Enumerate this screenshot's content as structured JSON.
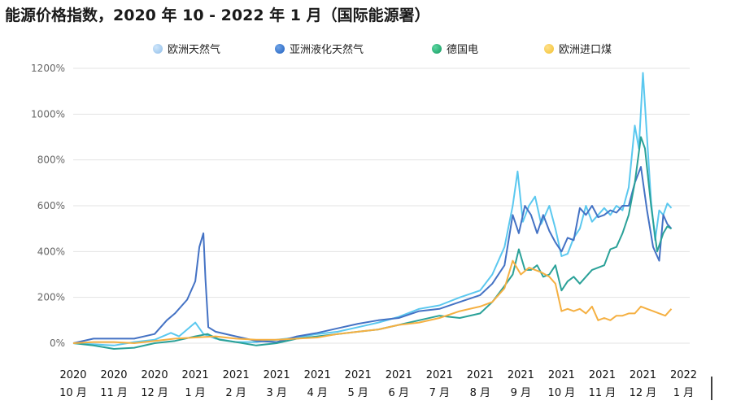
{
  "title": "能源价格指数，2020 年 10 - 2022 年 1 月（国际能源署）",
  "chart_data": {
    "type": "line",
    "title": "能源价格指数，2020 年 10 - 2022 年 1 月（国际能源署）",
    "xlabel": "",
    "ylabel": "",
    "ylim": [
      0,
      1200
    ],
    "yticks": [
      0,
      200,
      400,
      600,
      800,
      1000,
      1200
    ],
    "ytick_labels": [
      "0%",
      "200%",
      "400%",
      "600%",
      "800%",
      "1000%",
      "1200%"
    ],
    "grid": true,
    "legend_position": "top",
    "x_range": [
      0,
      15.15
    ],
    "x_tick_labels": [
      {
        "year": "2020",
        "month": "10 月"
      },
      {
        "year": "2020",
        "month": "11 月"
      },
      {
        "year": "2020",
        "month": "12 月"
      },
      {
        "year": "2021",
        "month": "1 月"
      },
      {
        "year": "2021",
        "month": "2 月"
      },
      {
        "year": "2021",
        "month": "3 月"
      },
      {
        "year": "2021",
        "month": "4 月"
      },
      {
        "year": "2021",
        "month": "5 月"
      },
      {
        "year": "2021",
        "month": "6 月"
      },
      {
        "year": "2021",
        "month": "7 月"
      },
      {
        "year": "2021",
        "month": "8 月"
      },
      {
        "year": "2021",
        "month": "9 月"
      },
      {
        "year": "2021",
        "month": "10 月"
      },
      {
        "year": "2021",
        "month": "11 月"
      },
      {
        "year": "2021",
        "month": "12 月"
      },
      {
        "year": "2022",
        "month": "1 月"
      }
    ],
    "series": [
      {
        "name": "欧洲天然气",
        "color": "#5bc8ef",
        "points": [
          [
            0,
            0
          ],
          [
            0.5,
            -5
          ],
          [
            1,
            -10
          ],
          [
            1.5,
            5
          ],
          [
            2,
            15
          ],
          [
            2.4,
            45
          ],
          [
            2.6,
            30
          ],
          [
            3,
            90
          ],
          [
            3.2,
            40
          ],
          [
            3.5,
            20
          ],
          [
            4,
            5
          ],
          [
            4.5,
            5
          ],
          [
            5,
            15
          ],
          [
            5.5,
            25
          ],
          [
            6,
            40
          ],
          [
            6.5,
            50
          ],
          [
            7,
            70
          ],
          [
            7.5,
            90
          ],
          [
            8,
            115
          ],
          [
            8.5,
            150
          ],
          [
            9,
            165
          ],
          [
            9.5,
            200
          ],
          [
            10,
            230
          ],
          [
            10.3,
            300
          ],
          [
            10.6,
            420
          ],
          [
            10.8,
            600
          ],
          [
            10.92,
            750
          ],
          [
            11.05,
            530
          ],
          [
            11.2,
            600
          ],
          [
            11.35,
            640
          ],
          [
            11.5,
            520
          ],
          [
            11.7,
            600
          ],
          [
            11.85,
            500
          ],
          [
            12,
            380
          ],
          [
            12.15,
            390
          ],
          [
            12.3,
            460
          ],
          [
            12.45,
            500
          ],
          [
            12.6,
            600
          ],
          [
            12.75,
            530
          ],
          [
            12.9,
            560
          ],
          [
            13.05,
            590
          ],
          [
            13.2,
            560
          ],
          [
            13.35,
            600
          ],
          [
            13.5,
            580
          ],
          [
            13.65,
            680
          ],
          [
            13.8,
            950
          ],
          [
            13.9,
            850
          ],
          [
            14.0,
            1180
          ],
          [
            14.1,
            900
          ],
          [
            14.2,
            620
          ],
          [
            14.3,
            450
          ],
          [
            14.4,
            580
          ],
          [
            14.5,
            560
          ],
          [
            14.6,
            610
          ],
          [
            14.7,
            590
          ]
        ]
      },
      {
        "name": "亚洲液化天然气",
        "color": "#4472c4",
        "points": [
          [
            0,
            0
          ],
          [
            0.5,
            20
          ],
          [
            1,
            20
          ],
          [
            1.5,
            20
          ],
          [
            2,
            40
          ],
          [
            2.3,
            100
          ],
          [
            2.5,
            130
          ],
          [
            2.8,
            190
          ],
          [
            3.0,
            270
          ],
          [
            3.1,
            420
          ],
          [
            3.2,
            480
          ],
          [
            3.25,
            280
          ],
          [
            3.32,
            70
          ],
          [
            3.5,
            50
          ],
          [
            4,
            30
          ],
          [
            4.5,
            10
          ],
          [
            5,
            5
          ],
          [
            5.5,
            30
          ],
          [
            6,
            45
          ],
          [
            6.5,
            65
          ],
          [
            7,
            85
          ],
          [
            7.5,
            100
          ],
          [
            8,
            110
          ],
          [
            8.5,
            140
          ],
          [
            9,
            150
          ],
          [
            9.5,
            180
          ],
          [
            10,
            210
          ],
          [
            10.3,
            260
          ],
          [
            10.6,
            340
          ],
          [
            10.8,
            560
          ],
          [
            10.95,
            480
          ],
          [
            11.1,
            600
          ],
          [
            11.25,
            560
          ],
          [
            11.4,
            480
          ],
          [
            11.55,
            560
          ],
          [
            11.7,
            490
          ],
          [
            11.85,
            440
          ],
          [
            12,
            400
          ],
          [
            12.15,
            460
          ],
          [
            12.3,
            450
          ],
          [
            12.45,
            590
          ],
          [
            12.6,
            560
          ],
          [
            12.75,
            600
          ],
          [
            12.9,
            550
          ],
          [
            13.05,
            560
          ],
          [
            13.2,
            580
          ],
          [
            13.35,
            570
          ],
          [
            13.5,
            600
          ],
          [
            13.65,
            600
          ],
          [
            13.8,
            700
          ],
          [
            13.95,
            770
          ],
          [
            14.1,
            580
          ],
          [
            14.25,
            420
          ],
          [
            14.4,
            360
          ],
          [
            14.5,
            560
          ],
          [
            14.6,
            520
          ],
          [
            14.7,
            500
          ]
        ]
      },
      {
        "name": "德国电",
        "color": "#2aa198",
        "points": [
          [
            0,
            0
          ],
          [
            0.5,
            -10
          ],
          [
            1,
            -25
          ],
          [
            1.5,
            -20
          ],
          [
            2,
            0
          ],
          [
            2.5,
            10
          ],
          [
            3,
            30
          ],
          [
            3.3,
            40
          ],
          [
            3.6,
            15
          ],
          [
            4,
            5
          ],
          [
            4.5,
            -10
          ],
          [
            5,
            0
          ],
          [
            5.5,
            20
          ],
          [
            6,
            30
          ],
          [
            6.5,
            40
          ],
          [
            7,
            50
          ],
          [
            7.5,
            60
          ],
          [
            8,
            80
          ],
          [
            8.5,
            100
          ],
          [
            9,
            120
          ],
          [
            9.5,
            110
          ],
          [
            10,
            130
          ],
          [
            10.3,
            180
          ],
          [
            10.6,
            250
          ],
          [
            10.8,
            300
          ],
          [
            10.95,
            410
          ],
          [
            11.1,
            320
          ],
          [
            11.25,
            320
          ],
          [
            11.4,
            340
          ],
          [
            11.55,
            290
          ],
          [
            11.7,
            300
          ],
          [
            11.85,
            340
          ],
          [
            12,
            230
          ],
          [
            12.15,
            270
          ],
          [
            12.3,
            290
          ],
          [
            12.45,
            260
          ],
          [
            12.6,
            290
          ],
          [
            12.75,
            320
          ],
          [
            12.9,
            330
          ],
          [
            13.05,
            340
          ],
          [
            13.2,
            410
          ],
          [
            13.35,
            420
          ],
          [
            13.5,
            480
          ],
          [
            13.65,
            560
          ],
          [
            13.8,
            700
          ],
          [
            13.95,
            900
          ],
          [
            14.05,
            850
          ],
          [
            14.2,
            600
          ],
          [
            14.35,
            400
          ],
          [
            14.5,
            480
          ],
          [
            14.6,
            510
          ],
          [
            14.7,
            500
          ]
        ]
      },
      {
        "name": "欧洲进口煤",
        "color": "#f5b042",
        "points": [
          [
            0,
            0
          ],
          [
            0.5,
            5
          ],
          [
            1,
            5
          ],
          [
            1.5,
            0
          ],
          [
            2,
            10
          ],
          [
            2.5,
            20
          ],
          [
            3,
            25
          ],
          [
            3.5,
            30
          ],
          [
            4,
            20
          ],
          [
            4.5,
            15
          ],
          [
            5,
            15
          ],
          [
            5.5,
            20
          ],
          [
            6,
            25
          ],
          [
            6.5,
            40
          ],
          [
            7,
            50
          ],
          [
            7.5,
            60
          ],
          [
            8,
            80
          ],
          [
            8.5,
            90
          ],
          [
            9,
            110
          ],
          [
            9.5,
            140
          ],
          [
            10,
            160
          ],
          [
            10.3,
            180
          ],
          [
            10.6,
            240
          ],
          [
            10.8,
            360
          ],
          [
            11.0,
            300
          ],
          [
            11.2,
            330
          ],
          [
            11.35,
            320
          ],
          [
            11.5,
            310
          ],
          [
            11.7,
            290
          ],
          [
            11.85,
            260
          ],
          [
            12.0,
            140
          ],
          [
            12.15,
            150
          ],
          [
            12.3,
            140
          ],
          [
            12.45,
            150
          ],
          [
            12.6,
            130
          ],
          [
            12.75,
            160
          ],
          [
            12.9,
            100
          ],
          [
            13.05,
            110
          ],
          [
            13.2,
            100
          ],
          [
            13.35,
            120
          ],
          [
            13.5,
            120
          ],
          [
            13.65,
            130
          ],
          [
            13.8,
            130
          ],
          [
            13.95,
            160
          ],
          [
            14.1,
            150
          ],
          [
            14.25,
            140
          ],
          [
            14.4,
            130
          ],
          [
            14.55,
            120
          ],
          [
            14.65,
            140
          ],
          [
            14.7,
            150
          ]
        ]
      }
    ]
  }
}
